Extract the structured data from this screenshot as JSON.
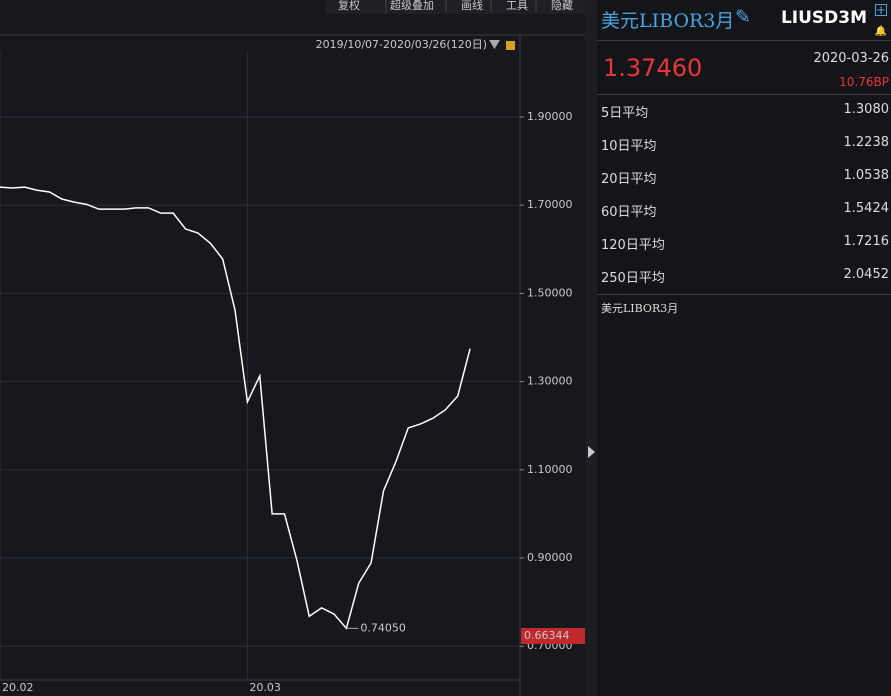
{
  "toolbar": {
    "buttons": [
      "复权",
      "超级叠加",
      "画线",
      "工具",
      "隐藏"
    ]
  },
  "chart_data": {
    "type": "line",
    "subtitle": "2019/10/07-2020/03/26(120日)",
    "categories": [
      "20.02",
      null,
      null,
      null,
      null,
      null,
      null,
      null,
      null,
      null,
      null,
      null,
      null,
      null,
      null,
      null,
      null,
      null,
      null,
      null,
      "20.03",
      null,
      null,
      null,
      null,
      null,
      null,
      null,
      null,
      null,
      null,
      null,
      null,
      null,
      null,
      null,
      null,
      null,
      null
    ],
    "values": [
      1.741,
      1.739,
      1.741,
      1.734,
      1.73,
      1.714,
      1.707,
      1.702,
      1.691,
      1.691,
      1.691,
      1.694,
      1.694,
      1.682,
      1.682,
      1.646,
      1.637,
      1.614,
      1.578,
      1.462,
      1.254,
      1.313,
      1.0,
      1.0,
      0.895,
      0.768,
      0.787,
      0.773,
      0.7405,
      0.843,
      0.889,
      1.052,
      1.118,
      1.195,
      1.204,
      1.217,
      1.236,
      1.267,
      1.3746
    ],
    "value_labels": [
      null,
      null,
      null,
      null,
      null,
      null,
      null,
      null,
      null,
      null,
      null,
      null,
      null,
      null,
      null,
      null,
      null,
      null,
      null,
      null,
      null,
      null,
      null,
      null,
      null,
      null,
      null,
      null,
      "0.74050",
      null,
      null,
      null,
      null,
      null,
      null,
      null,
      null,
      null,
      null
    ],
    "color": "#ffffff",
    "ylim": [
      0.6234,
      2.0474
    ],
    "yticks": [
      {
        "value": 0.7,
        "label": "0.70000"
      },
      {
        "value": 0.9,
        "label": "0.90000"
      },
      {
        "value": 1.1,
        "label": "1.10000"
      },
      {
        "value": 1.3,
        "label": "1.30000"
      },
      {
        "value": 1.5,
        "label": "1.50000"
      },
      {
        "value": 1.7,
        "label": "1.70000"
      },
      {
        "value": 1.9,
        "label": "1.90000"
      }
    ],
    "grid": true,
    "price_tag": "0.66344"
  },
  "sidebar": {
    "name": "美元LIBOR3月",
    "code": "LIUSD3M",
    "price": "1.37460",
    "date": "2020-03-26",
    "change": "10.76BP",
    "rows": [
      [
        "5日平均",
        "1.3080"
      ],
      [
        "10日平均",
        "1.2238"
      ],
      [
        "20日平均",
        "1.0538"
      ],
      [
        "60日平均",
        "1.5424"
      ],
      [
        "120日平均",
        "1.7216"
      ],
      [
        "250日平均",
        "2.0452"
      ]
    ],
    "footer": "美元LIBOR3月"
  }
}
